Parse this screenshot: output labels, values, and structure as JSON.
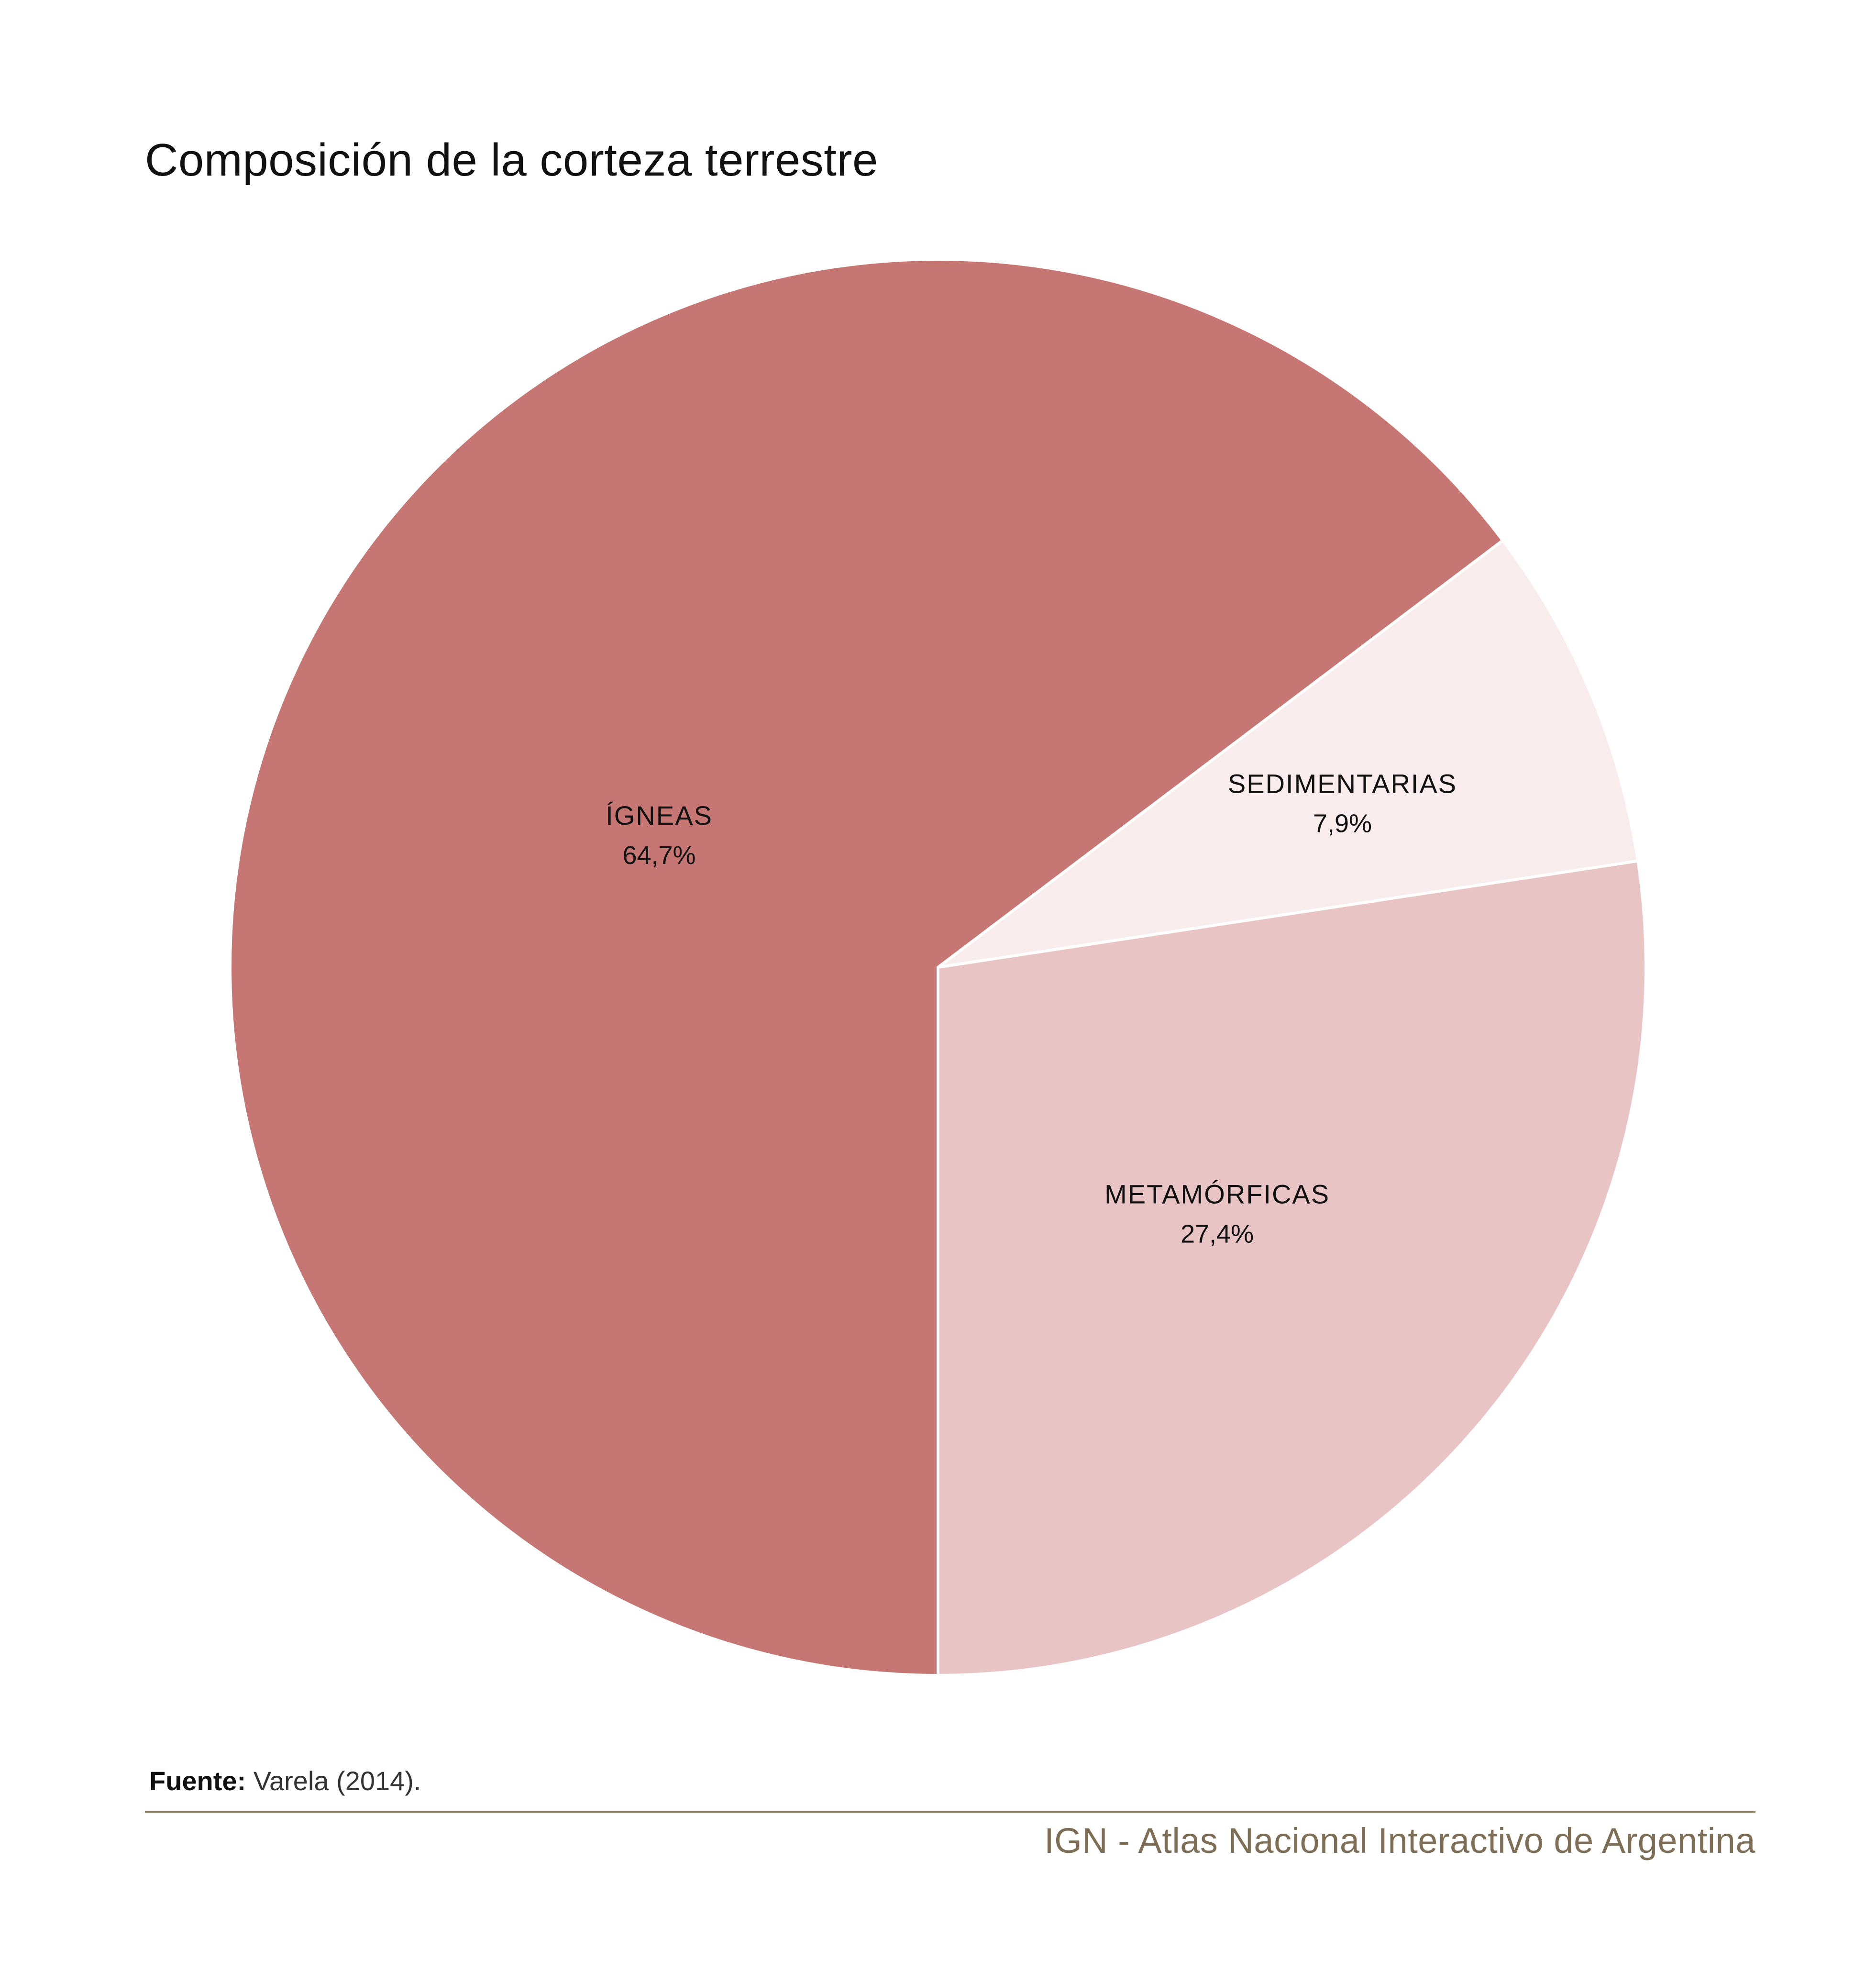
{
  "chart_data": {
    "type": "pie",
    "title": "Composición de la corteza terrestre",
    "start_angle_deg": 270,
    "direction": "counterclockwise",
    "slices": [
      {
        "name": "ÍGNEAS",
        "value": 64.7,
        "label": "64,7%",
        "color": "#c67773"
      },
      {
        "name": "SEDIMENTARIAS",
        "value": 7.9,
        "label": "7,9%",
        "color": "#f8ecec"
      },
      {
        "name": "METAMÓRFICAS",
        "value": 27.4,
        "label": "27,4%",
        "color": "#e8c5c4"
      }
    ],
    "separator_color": "#ffffff"
  },
  "source": {
    "label": "Fuente:",
    "text": " Varela (2014)."
  },
  "footer": {
    "credit": "IGN - Atlas Nacional Interactivo de Argentina",
    "rule_color": "#8a7b5c"
  }
}
